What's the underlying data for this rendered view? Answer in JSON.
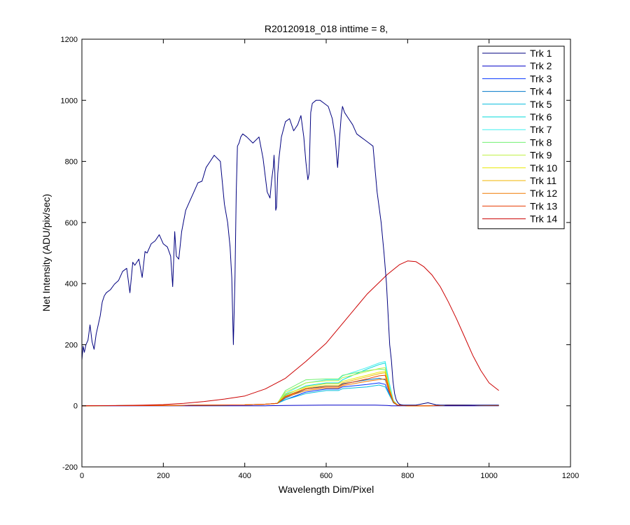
{
  "chart_data": {
    "type": "line",
    "title": "R20120918_018 inttime = 8,",
    "xlabel": "Wavelength Dim/Pixel",
    "ylabel": "Net Intensity (ADU/pix/sec)",
    "xlim": [
      0,
      1200
    ],
    "ylim": [
      -200,
      1200
    ],
    "xticks": [
      0,
      200,
      400,
      600,
      800,
      1000,
      1200
    ],
    "yticks": [
      -200,
      0,
      200,
      400,
      600,
      800,
      1000,
      1200
    ],
    "grid": false,
    "legend_position": "top-right",
    "series": [
      {
        "name": "Trk 1",
        "color": "#00007F",
        "x": [
          0,
          3,
          6,
          10,
          15,
          20,
          25,
          30,
          35,
          40,
          45,
          50,
          55,
          60,
          70,
          80,
          90,
          100,
          110,
          118,
          125,
          130,
          140,
          148,
          155,
          160,
          170,
          180,
          190,
          200,
          210,
          218,
          223,
          228,
          232,
          238,
          245,
          255,
          265,
          275,
          285,
          295,
          305,
          315,
          325,
          340,
          350,
          358,
          364,
          368,
          372,
          376,
          379,
          382,
          386,
          390,
          395,
          405,
          420,
          435,
          445,
          455,
          462,
          466,
          470,
          472,
          474,
          476,
          478,
          481,
          484,
          490,
          500,
          510,
          520,
          530,
          538,
          545,
          550,
          555,
          558,
          562,
          566,
          575,
          585,
          595,
          605,
          615,
          622,
          628,
          633,
          637,
          640,
          645,
          655,
          665,
          675,
          685,
          695,
          705,
          715,
          725,
          735,
          742,
          748,
          752,
          756,
          760,
          764,
          768,
          772,
          776,
          780,
          785,
          790,
          800,
          820,
          850,
          870,
          880,
          900,
          950,
          1000,
          1024
        ],
        "y": [
          150,
          195,
          175,
          200,
          215,
          265,
          210,
          185,
          235,
          265,
          295,
          340,
          360,
          370,
          380,
          398,
          410,
          440,
          450,
          370,
          470,
          460,
          480,
          420,
          505,
          500,
          530,
          540,
          560,
          530,
          520,
          490,
          390,
          570,
          490,
          480,
          570,
          640,
          670,
          700,
          730,
          735,
          780,
          800,
          820,
          800,
          660,
          600,
          520,
          420,
          200,
          420,
          700,
          850,
          860,
          880,
          890,
          880,
          860,
          880,
          810,
          700,
          680,
          740,
          780,
          820,
          760,
          640,
          650,
          760,
          810,
          880,
          930,
          940,
          900,
          920,
          950,
          880,
          800,
          740,
          760,
          960,
          990,
          1000,
          1000,
          990,
          980,
          940,
          880,
          780,
          880,
          950,
          980,
          960,
          940,
          920,
          890,
          880,
          870,
          860,
          850,
          700,
          600,
          500,
          400,
          300,
          200,
          150,
          80,
          40,
          20,
          10,
          5,
          3,
          2,
          2,
          2,
          10,
          3,
          2,
          2,
          2,
          2,
          2
        ]
      },
      {
        "name": "Trk 2",
        "color": "#0000C8",
        "x": [
          0,
          400,
          450,
          500,
          600,
          700,
          720,
          750,
          760,
          780,
          800,
          1024
        ],
        "y": [
          0,
          0,
          0,
          1,
          2,
          2,
          2,
          1,
          0,
          0,
          0,
          0
        ]
      },
      {
        "name": "Trk 3",
        "color": "#0033FF",
        "x": [
          0,
          200,
          300,
          400,
          450,
          480,
          500,
          550,
          600,
          630,
          640,
          700,
          730,
          745,
          755,
          765,
          775,
          800,
          850,
          900,
          1024
        ],
        "y": [
          0,
          1,
          2,
          3,
          5,
          8,
          20,
          45,
          55,
          55,
          62,
          70,
          75,
          70,
          40,
          10,
          2,
          0,
          0,
          2,
          1
        ]
      },
      {
        "name": "Trk 4",
        "color": "#0077C8",
        "x": [
          0,
          200,
          300,
          400,
          450,
          480,
          500,
          550,
          600,
          630,
          640,
          700,
          730,
          745,
          755,
          765,
          775,
          800,
          850,
          900,
          1024
        ],
        "y": [
          0,
          1,
          2,
          3,
          5,
          8,
          25,
          55,
          65,
          65,
          72,
          85,
          90,
          85,
          45,
          12,
          2,
          0,
          0,
          2,
          1
        ]
      },
      {
        "name": "Trk 5",
        "color": "#00BBDD",
        "x": [
          0,
          200,
          300,
          400,
          450,
          480,
          500,
          550,
          600,
          630,
          640,
          700,
          730,
          745,
          755,
          765,
          775,
          800,
          850,
          900,
          1024
        ],
        "y": [
          0,
          1,
          2,
          3,
          5,
          8,
          20,
          40,
          50,
          50,
          56,
          62,
          68,
          62,
          35,
          10,
          2,
          0,
          0,
          2,
          1
        ]
      },
      {
        "name": "Trk 6",
        "color": "#00D8D8",
        "x": [
          0,
          200,
          300,
          400,
          450,
          480,
          500,
          550,
          600,
          630,
          640,
          700,
          730,
          745,
          755,
          765,
          775,
          800,
          850,
          900,
          1024
        ],
        "y": [
          0,
          1,
          2,
          3,
          5,
          8,
          35,
          65,
          75,
          75,
          85,
          120,
          135,
          140,
          70,
          15,
          3,
          0,
          0,
          2,
          1
        ]
      },
      {
        "name": "Trk 7",
        "color": "#40F0F0",
        "x": [
          0,
          200,
          300,
          400,
          450,
          480,
          500,
          550,
          600,
          630,
          640,
          700,
          730,
          745,
          755,
          765,
          775,
          800,
          850,
          900,
          1024
        ],
        "y": [
          0,
          1,
          2,
          3,
          5,
          8,
          40,
          75,
          85,
          85,
          98,
          125,
          140,
          145,
          75,
          18,
          3,
          0,
          0,
          2,
          1
        ]
      },
      {
        "name": "Trk 8",
        "color": "#70F070",
        "x": [
          0,
          200,
          300,
          400,
          450,
          480,
          500,
          550,
          600,
          630,
          640,
          700,
          730,
          745,
          755,
          765,
          775,
          800,
          850,
          900,
          1024
        ],
        "y": [
          0,
          1,
          2,
          3,
          5,
          8,
          50,
          85,
          88,
          88,
          100,
          115,
          120,
          118,
          60,
          15,
          3,
          0,
          0,
          2,
          1
        ]
      },
      {
        "name": "Trk 9",
        "color": "#BFF040",
        "x": [
          0,
          200,
          300,
          400,
          450,
          480,
          500,
          550,
          600,
          630,
          640,
          700,
          730,
          745,
          755,
          765,
          775,
          800,
          850,
          900,
          1024
        ],
        "y": [
          0,
          1,
          2,
          3,
          5,
          8,
          45,
          75,
          82,
          82,
          92,
          112,
          122,
          125,
          62,
          15,
          3,
          0,
          0,
          2,
          1
        ]
      },
      {
        "name": "Trk 10",
        "color": "#E8E800",
        "x": [
          0,
          200,
          300,
          400,
          450,
          480,
          500,
          550,
          600,
          630,
          640,
          700,
          730,
          745,
          755,
          765,
          775,
          800,
          850,
          900,
          1024
        ],
        "y": [
          0,
          1,
          2,
          3,
          5,
          8,
          38,
          62,
          72,
          72,
          80,
          100,
          110,
          112,
          56,
          14,
          3,
          0,
          0,
          2,
          1
        ]
      },
      {
        "name": "Trk 11",
        "color": "#F0B400",
        "x": [
          0,
          200,
          300,
          400,
          450,
          480,
          500,
          550,
          600,
          630,
          640,
          700,
          730,
          745,
          755,
          765,
          775,
          800,
          850,
          900,
          1024
        ],
        "y": [
          0,
          1,
          2,
          3,
          5,
          8,
          32,
          58,
          66,
          66,
          75,
          95,
          105,
          108,
          54,
          13,
          3,
          0,
          0,
          2,
          1
        ]
      },
      {
        "name": "Trk 12",
        "color": "#F07800",
        "x": [
          0,
          200,
          300,
          400,
          450,
          480,
          500,
          550,
          600,
          630,
          640,
          700,
          730,
          745,
          755,
          765,
          775,
          800,
          850,
          900,
          1024
        ],
        "y": [
          0,
          1,
          2,
          3,
          5,
          8,
          28,
          50,
          58,
          58,
          66,
          80,
          86,
          88,
          44,
          11,
          2,
          0,
          0,
          2,
          1
        ]
      },
      {
        "name": "Trk 13",
        "color": "#E83C00",
        "x": [
          0,
          200,
          300,
          400,
          450,
          480,
          500,
          550,
          600,
          630,
          640,
          700,
          730,
          745,
          755,
          765,
          775,
          800,
          850,
          900,
          1024
        ],
        "y": [
          0,
          1,
          2,
          3,
          5,
          8,
          30,
          55,
          62,
          62,
          70,
          88,
          98,
          100,
          50,
          12,
          2,
          0,
          0,
          2,
          1
        ]
      },
      {
        "name": "Trk 14",
        "color": "#CC0000",
        "x": [
          0,
          100,
          150,
          200,
          250,
          300,
          350,
          400,
          450,
          500,
          550,
          600,
          650,
          700,
          750,
          780,
          800,
          820,
          840,
          860,
          880,
          900,
          920,
          940,
          960,
          980,
          1000,
          1024
        ],
        "y": [
          0,
          1,
          2,
          4,
          8,
          14,
          22,
          32,
          55,
          90,
          145,
          205,
          285,
          365,
          430,
          462,
          474,
          472,
          455,
          428,
          390,
          340,
          285,
          225,
          165,
          115,
          75,
          50
        ]
      }
    ]
  }
}
